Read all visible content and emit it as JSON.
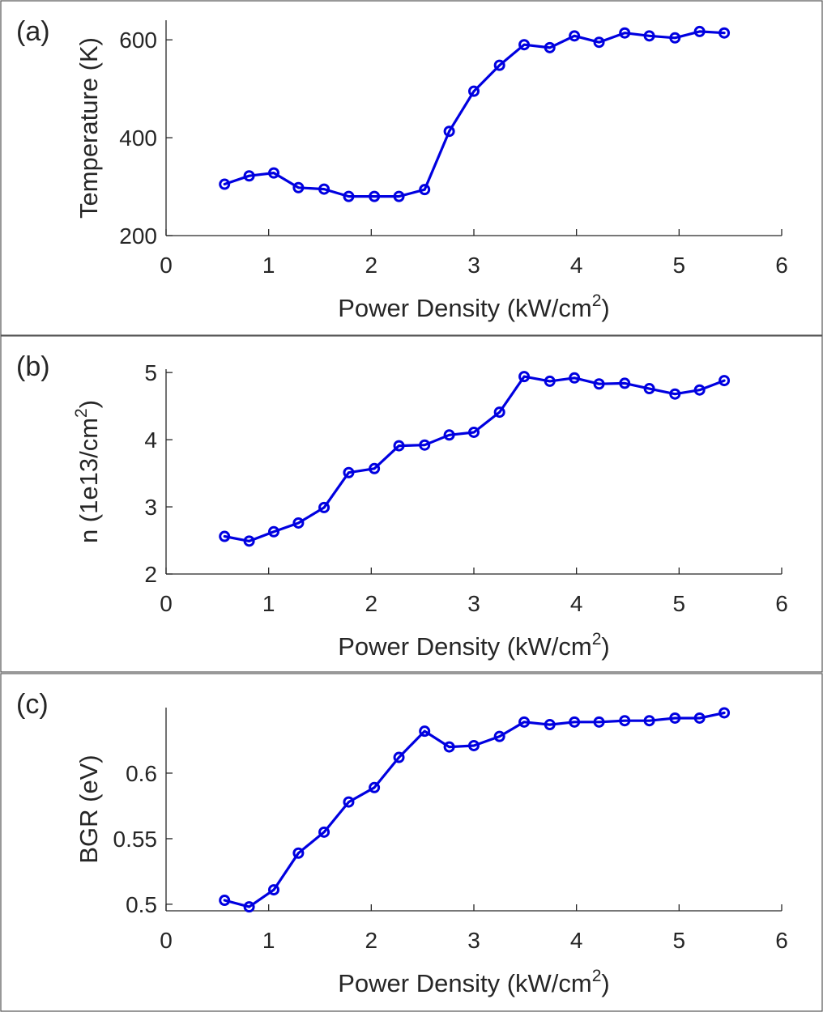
{
  "chart_data": [
    {
      "type": "line",
      "panel_label": "(a)",
      "xlabel": "Power Density (kW/cm",
      "xlabel_sup": "2",
      "xlabel_post": ")",
      "ylabel": "Temperature (K)",
      "ylabel_sup": "",
      "ylabel_post": "",
      "xlim": [
        0,
        6
      ],
      "ylim": [
        200,
        640
      ],
      "xticks": [
        0,
        1,
        2,
        3,
        4,
        5,
        6
      ],
      "xtick_labels": [
        "0",
        "1",
        "2",
        "3",
        "4",
        "5",
        "6"
      ],
      "yticks": [
        200,
        400,
        600
      ],
      "ytick_labels": [
        "200",
        "400",
        "600"
      ],
      "color": "#0000e0",
      "x": [
        0.57,
        0.81,
        1.05,
        1.29,
        1.54,
        1.78,
        2.03,
        2.27,
        2.52,
        2.76,
        3.0,
        3.25,
        3.49,
        3.74,
        3.98,
        4.22,
        4.47,
        4.71,
        4.96,
        5.2,
        5.44
      ],
      "y": [
        305,
        322,
        328,
        298,
        295,
        280,
        280,
        280,
        294,
        413,
        495,
        548,
        590,
        584,
        608,
        595,
        614,
        608,
        604,
        617,
        614
      ]
    },
    {
      "type": "line",
      "panel_label": "(b)",
      "xlabel": "Power Density (kW/cm",
      "xlabel_sup": "2",
      "xlabel_post": ")",
      "ylabel": "n (1e13/cm",
      "ylabel_sup": "2",
      "ylabel_post": ")",
      "xlim": [
        0,
        6
      ],
      "ylim": [
        2,
        5.05
      ],
      "xticks": [
        0,
        1,
        2,
        3,
        4,
        5,
        6
      ],
      "xtick_labels": [
        "0",
        "1",
        "2",
        "3",
        "4",
        "5",
        "6"
      ],
      "yticks": [
        2,
        3,
        4,
        5
      ],
      "ytick_labels": [
        "2",
        "3",
        "4",
        "5"
      ],
      "color": "#0000e0",
      "x": [
        0.57,
        0.81,
        1.05,
        1.29,
        1.54,
        1.78,
        2.03,
        2.27,
        2.52,
        2.76,
        3.0,
        3.25,
        3.49,
        3.74,
        3.98,
        4.22,
        4.47,
        4.71,
        4.96,
        5.2,
        5.44
      ],
      "y": [
        2.56,
        2.49,
        2.63,
        2.76,
        2.99,
        3.51,
        3.57,
        3.91,
        3.92,
        4.07,
        4.11,
        4.41,
        4.94,
        4.87,
        4.92,
        4.83,
        4.84,
        4.76,
        4.68,
        4.74,
        4.88
      ]
    },
    {
      "type": "line",
      "panel_label": "(c)",
      "xlabel": "Power Density (kW/cm",
      "xlabel_sup": "2",
      "xlabel_post": ")",
      "ylabel": "BGR (eV)",
      "ylabel_sup": "",
      "ylabel_post": "",
      "xlim": [
        0,
        6
      ],
      "ylim": [
        0.495,
        0.65
      ],
      "xticks": [
        0,
        1,
        2,
        3,
        4,
        5,
        6
      ],
      "xtick_labels": [
        "0",
        "1",
        "2",
        "3",
        "4",
        "5",
        "6"
      ],
      "yticks": [
        0.5,
        0.55,
        0.6
      ],
      "ytick_labels": [
        "0.5",
        "0.55",
        "0.6"
      ],
      "color": "#0000e0",
      "x": [
        0.57,
        0.81,
        1.05,
        1.29,
        1.54,
        1.78,
        2.03,
        2.27,
        2.52,
        2.76,
        3.0,
        3.25,
        3.49,
        3.74,
        3.98,
        4.22,
        4.47,
        4.71,
        4.96,
        5.2,
        5.44
      ],
      "y": [
        0.503,
        0.498,
        0.511,
        0.539,
        0.555,
        0.578,
        0.589,
        0.612,
        0.632,
        0.62,
        0.621,
        0.628,
        0.639,
        0.637,
        0.639,
        0.639,
        0.64,
        0.64,
        0.642,
        0.642,
        0.646
      ]
    }
  ]
}
